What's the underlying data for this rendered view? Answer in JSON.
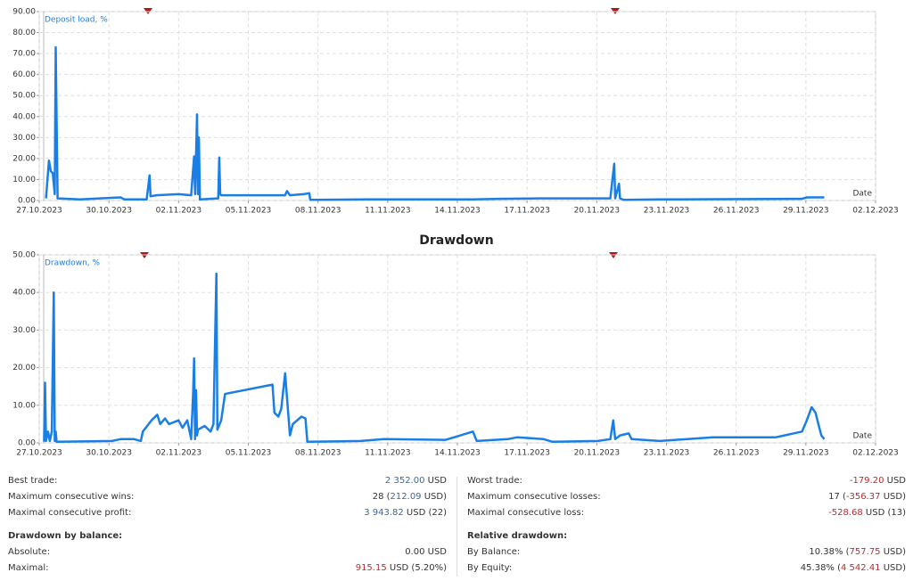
{
  "chart_data": [
    {
      "type": "line",
      "x_label": "Date",
      "x": [
        "2023-10-27T07:00",
        "2023-10-27T10:00",
        "2023-10-27T12:00",
        "2023-10-27T14:00",
        "2023-10-27T16:00",
        "2023-10-27T17:00",
        "2023-10-27T19:00",
        "2023-10-28T18:00",
        "2023-10-30T12:00",
        "2023-10-30T16:00",
        "2023-10-31T15:00",
        "2023-10-31T18:00",
        "2023-10-31T19:00",
        "2023-11-01T01:00",
        "2023-11-02T00:00",
        "2023-11-02T13:00",
        "2023-11-02T16:00",
        "2023-11-02T17:00",
        "2023-11-02T19:00",
        "2023-11-02T20:00",
        "2023-11-02T21:00",
        "2023-11-02T22:00",
        "2023-11-03T17:00",
        "2023-11-03T18:00",
        "2023-11-03T19:00",
        "2023-11-03T20:00",
        "2023-11-06T14:00",
        "2023-11-06T16:00",
        "2023-11-06T19:00",
        "2023-11-07T09:00",
        "2023-11-07T15:00",
        "2023-11-07T16:00",
        "2023-11-10T01:00",
        "2023-11-14T16:00",
        "2023-11-15T19:00",
        "2023-11-17T13:00",
        "2023-11-20T14:00",
        "2023-11-20T18:00",
        "2023-11-20T19:00",
        "2023-11-20T23:00",
        "2023-11-21T00:00",
        "2023-11-21T04:00",
        "2023-11-22T17:00",
        "2023-11-28T20:00",
        "2023-11-29T01:00",
        "2023-11-29T19:00"
      ],
      "series": [
        {
          "name": "Deposit load, %",
          "color": "#1a7fe4",
          "values": [
            1,
            19,
            14,
            13,
            3,
            73,
            1,
            0.5,
            1.5,
            0.5,
            0.5,
            12,
            2,
            2.5,
            3,
            2.5,
            21,
            3,
            41,
            3,
            30,
            0.5,
            1,
            20.5,
            3,
            2.5,
            2.5,
            4.5,
            2.5,
            3,
            3.5,
            0.3,
            0.5,
            0.5,
            0.8,
            1,
            1,
            17.5,
            1,
            8,
            1,
            0.3,
            0.5,
            0.8,
            1.5,
            1.5
          ]
        }
      ],
      "ylim": [
        0,
        90
      ],
      "yticks": [
        {
          "value": 0,
          "label": "0.00"
        },
        {
          "value": 10,
          "label": "10.00"
        },
        {
          "value": 20,
          "label": "20.00"
        },
        {
          "value": 30,
          "label": "30.00"
        },
        {
          "value": 40,
          "label": "40.00"
        },
        {
          "value": 50,
          "label": "50.00"
        },
        {
          "value": 60,
          "label": "60.00"
        },
        {
          "value": 70,
          "label": "70.00"
        },
        {
          "value": 80,
          "label": "80.00"
        },
        {
          "value": 90,
          "label": "90.00"
        }
      ],
      "xlim": [
        "2023-10-27",
        "2023-12-02"
      ],
      "xticks": [
        {
          "value": "2023-10-27",
          "label": "27.10.2023"
        },
        {
          "value": "2023-10-30",
          "label": "30.10.2023"
        },
        {
          "value": "2023-11-02",
          "label": "02.11.2023"
        },
        {
          "value": "2023-11-05",
          "label": "05.11.2023"
        },
        {
          "value": "2023-11-08",
          "label": "08.11.2023"
        },
        {
          "value": "2023-11-11",
          "label": "11.11.2023"
        },
        {
          "value": "2023-11-14",
          "label": "14.11.2023"
        },
        {
          "value": "2023-11-17",
          "label": "17.11.2023"
        },
        {
          "value": "2023-11-20",
          "label": "20.11.2023"
        },
        {
          "value": "2023-11-23",
          "label": "23.11.2023"
        },
        {
          "value": "2023-11-26",
          "label": "26.11.2023"
        },
        {
          "value": "2023-11-29",
          "label": "29.11.2023"
        },
        {
          "value": "2023-12-02",
          "label": "02.12.2023"
        }
      ],
      "grid": true
    },
    {
      "type": "line",
      "title": "Drawdown",
      "x_label": "Date",
      "x": [
        "2023-10-27T05:00",
        "2023-10-27T06:00",
        "2023-10-27T07:00",
        "2023-10-27T09:00",
        "2023-10-27T11:00",
        "2023-10-27T13:00",
        "2023-10-27T15:00",
        "2023-10-27T16:00",
        "2023-10-27T17:00",
        "2023-10-27T18:00",
        "2023-10-30T03:00",
        "2023-10-30T12:00",
        "2023-10-31T02:00",
        "2023-10-31T09:00",
        "2023-10-31T11:00",
        "2023-10-31T20:00",
        "2023-11-01T02:00",
        "2023-11-01T05:00",
        "2023-11-01T10:00",
        "2023-11-01T14:00",
        "2023-11-02T00:00",
        "2023-11-02T04:00",
        "2023-11-02T09:00",
        "2023-11-02T13:00",
        "2023-11-02T15:00",
        "2023-11-02T16:00",
        "2023-11-02T17:00",
        "2023-11-02T18:00",
        "2023-11-02T19:00",
        "2023-11-02T20:00",
        "2023-11-03T03:00",
        "2023-11-03T09:00",
        "2023-11-03T12:00",
        "2023-11-03T15:00",
        "2023-11-03T16:00",
        "2023-11-03T20:00",
        "2023-11-04T00:00",
        "2023-11-06T01:00",
        "2023-11-06T03:00",
        "2023-11-06T07:00",
        "2023-11-06T10:00",
        "2023-11-06T14:00",
        "2023-11-06T16:00",
        "2023-11-06T19:00",
        "2023-11-06T22:00",
        "2023-11-07T07:00",
        "2023-11-07T11:00",
        "2023-11-07T13:00",
        "2023-11-09T20:00",
        "2023-11-10T20:00",
        "2023-11-13T12:00",
        "2023-11-14T16:00",
        "2023-11-14T20:00",
        "2023-11-16T04:00",
        "2023-11-16T14:00",
        "2023-11-17T17:00",
        "2023-11-18T02:00",
        "2023-11-20T01:00",
        "2023-11-20T14:00",
        "2023-11-20T17:00",
        "2023-11-20T19:00",
        "2023-11-21T00:00",
        "2023-11-21T09:00",
        "2023-11-21T12:00",
        "2023-11-22T17:00",
        "2023-11-25T00:00",
        "2023-11-27T17:00",
        "2023-11-28T02:00",
        "2023-11-28T20:00",
        "2023-11-29T01:00",
        "2023-11-29T06:00",
        "2023-11-29T10:00",
        "2023-11-29T13:00",
        "2023-11-29T16:00",
        "2023-11-29T19:00"
      ],
      "series": [
        {
          "name": "Drawdown, %",
          "color": "#1a7fe4",
          "values": [
            0.3,
            16,
            0.5,
            3,
            0.5,
            3,
            40,
            0.5,
            3,
            0.3,
            0.5,
            1,
            1,
            0.5,
            3,
            6,
            7.5,
            5,
            6.5,
            5,
            6,
            4,
            6,
            1,
            13,
            22.5,
            1,
            14,
            2,
            3.5,
            4.5,
            3,
            5,
            45,
            3.5,
            6,
            13,
            15.5,
            8,
            7,
            9,
            18.5,
            12,
            2,
            5,
            7,
            6.5,
            0.3,
            0.5,
            1,
            0.8,
            3,
            0.5,
            1,
            1.5,
            1,
            0.3,
            0.5,
            1,
            6,
            1,
            2,
            2.5,
            1,
            0.5,
            1.5,
            1.5,
            2,
            3,
            6,
            9.5,
            8,
            5,
            2,
            1
          ]
        }
      ],
      "ylim": [
        0,
        50
      ],
      "yticks": [
        {
          "value": 0,
          "label": "0.00"
        },
        {
          "value": 10,
          "label": "10.00"
        },
        {
          "value": 20,
          "label": "20.00"
        },
        {
          "value": 30,
          "label": "30.00"
        },
        {
          "value": 40,
          "label": "40.00"
        },
        {
          "value": 50,
          "label": "50.00"
        }
      ],
      "xlim": [
        "2023-10-27",
        "2023-12-02"
      ],
      "xticks": [
        {
          "value": "2023-10-27",
          "label": "27.10.2023"
        },
        {
          "value": "2023-10-30",
          "label": "30.10.2023"
        },
        {
          "value": "2023-11-02",
          "label": "02.11.2023"
        },
        {
          "value": "2023-11-05",
          "label": "05.11.2023"
        },
        {
          "value": "2023-11-08",
          "label": "08.11.2023"
        },
        {
          "value": "2023-11-11",
          "label": "11.11.2023"
        },
        {
          "value": "2023-11-14",
          "label": "14.11.2023"
        },
        {
          "value": "2023-11-17",
          "label": "17.11.2023"
        },
        {
          "value": "2023-11-20",
          "label": "20.11.2023"
        },
        {
          "value": "2023-11-23",
          "label": "23.11.2023"
        },
        {
          "value": "2023-11-26",
          "label": "26.11.2023"
        },
        {
          "value": "2023-11-29",
          "label": "29.11.2023"
        },
        {
          "value": "2023-12-02",
          "label": "02.12.2023"
        }
      ],
      "grid": true
    }
  ],
  "stats": {
    "columns": [
      {
        "rows": [
          {
            "label": "Best trade:",
            "value": [
              {
                "text": "2 352.00",
                "color": "#3d679e"
              },
              {
                "text": " USD"
              }
            ]
          },
          {
            "label": "Maximum consecutive wins:",
            "value": [
              {
                "text": "28 ("
              },
              {
                "text": "212.09",
                "color": "#3d679e"
              },
              {
                "text": " USD)"
              }
            ]
          },
          {
            "label": "Maximal consecutive profit:",
            "value": [
              {
                "text": "3 943.82",
                "color": "#3d679e"
              },
              {
                "text": " USD (22)"
              }
            ]
          }
        ],
        "section": "Drawdown by balance:",
        "section_rows": [
          {
            "label": "Absolute:",
            "value": [
              {
                "text": "0.00 USD"
              }
            ]
          },
          {
            "label": "Maximal:",
            "value": [
              {
                "text": "915.15",
                "color": "#c0282d"
              },
              {
                "text": " USD (5.20%)"
              }
            ]
          }
        ]
      },
      {
        "rows": [
          {
            "label": "Worst trade:",
            "value": [
              {
                "text": "-179.20",
                "color": "#c0282d"
              },
              {
                "text": " USD"
              }
            ]
          },
          {
            "label": "Maximum consecutive losses:",
            "value": [
              {
                "text": "17 ("
              },
              {
                "text": "-356.37",
                "color": "#c0282d"
              },
              {
                "text": " USD)"
              }
            ]
          },
          {
            "label": "Maximal consecutive loss:",
            "value": [
              {
                "text": "-528.68",
                "color": "#c0282d"
              },
              {
                "text": " USD (13)"
              }
            ]
          }
        ],
        "section": "Relative drawdown:",
        "section_rows": [
          {
            "label": "By Balance:",
            "value": [
              {
                "text": "10.38% ("
              },
              {
                "text": "757.75",
                "color": "#c0282d"
              },
              {
                "text": " USD)"
              }
            ]
          },
          {
            "label": "By Equity:",
            "value": [
              {
                "text": "45.38% ("
              },
              {
                "text": "4 542.41",
                "color": "#c0282d"
              },
              {
                "text": " USD)"
              }
            ]
          }
        ]
      }
    ]
  }
}
